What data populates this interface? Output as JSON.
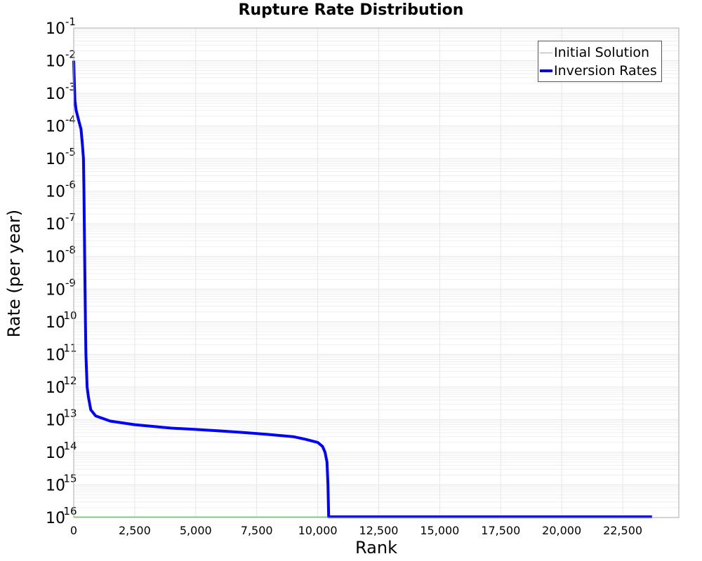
{
  "chart_data": {
    "type": "line",
    "title": "Rupture Rate Distribution",
    "xlabel": "Rank",
    "ylabel": "Rate (per year)",
    "xlim": [
      0,
      24800
    ],
    "ylim": [
      1e-16,
      0.1
    ],
    "yscale": "log",
    "grid": true,
    "legend_position": "upper right",
    "x_ticks": [
      0,
      2500,
      5000,
      7500,
      10000,
      12500,
      15000,
      17500,
      20000,
      22500
    ],
    "x_tick_labels": [
      "0",
      "2,500",
      "5,000",
      "7,500",
      "10,000",
      "12,500",
      "15,000",
      "17,500",
      "20,000",
      "22,500"
    ],
    "y_ticks": [
      0.1,
      0.01,
      0.001,
      0.0001,
      1e-05,
      1e-06,
      1e-07,
      1e-08,
      1e-09,
      1e-10,
      1e-11,
      1e-12,
      1e-13,
      1e-14,
      1e-15,
      1e-16
    ],
    "y_tick_exponents": [
      "-1",
      "-2",
      "-3",
      "-4",
      "-5",
      "-6",
      "-7",
      "-8",
      "-9",
      "-10",
      "-11",
      "-12",
      "-13",
      "-14",
      "-15",
      "-16"
    ],
    "series": [
      {
        "name": "Initial Solution",
        "color": "#66dd66",
        "line_width": 1,
        "x": [
          0,
          10500
        ],
        "y": [
          1e-16,
          1e-16
        ]
      },
      {
        "name": "Inversion Rates",
        "color": "#0000ff",
        "line_width": 4,
        "x": [
          0,
          20,
          50,
          100,
          200,
          300,
          350,
          400,
          420,
          450,
          480,
          500,
          550,
          600,
          700,
          900,
          1500,
          2500,
          4000,
          5000,
          6000,
          7000,
          8000,
          9000,
          9500,
          10000,
          10200,
          10300,
          10380,
          10420,
          10450,
          10480,
          10500,
          10510,
          10520,
          15000,
          20000,
          23700
        ],
        "y": [
          0.01,
          0.003,
          0.0006,
          0.0003,
          0.00015,
          8e-05,
          3e-05,
          1e-05,
          1e-06,
          1e-08,
          1e-10,
          1e-11,
          1e-12,
          5e-13,
          2e-13,
          1.3e-13,
          9e-14,
          7e-14,
          5.5e-14,
          5e-14,
          4.5e-14,
          4e-14,
          3.5e-14,
          3e-14,
          2.5e-14,
          2e-14,
          1.5e-14,
          1e-14,
          5e-15,
          1e-15,
          1e-16,
          1e-16,
          1e-16,
          1e-16,
          1e-16,
          1e-16,
          1e-16,
          1e-16
        ]
      }
    ]
  },
  "legend": {
    "items": [
      {
        "label": "Initial Solution",
        "color": "#66dd66"
      },
      {
        "label": "Inversion Rates",
        "color": "#0000ff"
      }
    ]
  },
  "colors": {
    "plot_border": "#aaaaaa",
    "grid_major": "#e6e6e6",
    "grid_minor": "#efefef"
  }
}
